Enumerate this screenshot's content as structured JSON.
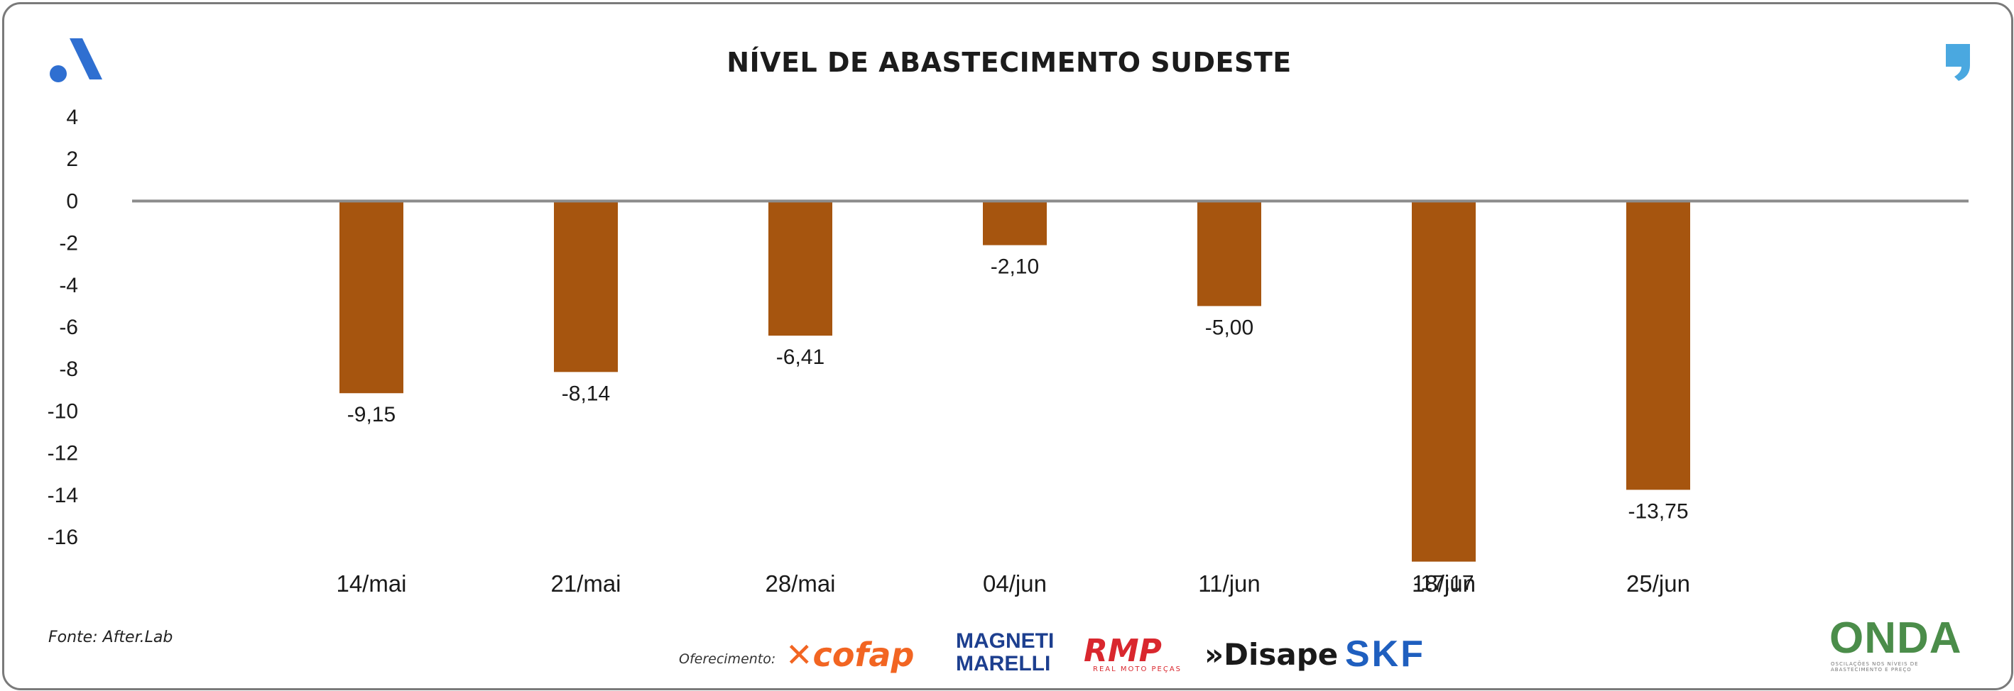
{
  "header": {
    "title": "NÍVEL DE ABASTECIMENTO SUDESTE",
    "left_logo_icon": "brand-a-logo",
    "right_logo_icon": "quote-mark-logo"
  },
  "chart_data": {
    "type": "bar",
    "title": "NÍVEL DE ABASTECIMENTO SUDESTE",
    "categories": [
      "14/mai",
      "21/mai",
      "28/mai",
      "04/jun",
      "11/jun",
      "18/jun",
      "25/jun"
    ],
    "values": [
      -9.15,
      -8.14,
      -6.41,
      -2.1,
      -5.0,
      -17.17,
      -13.75
    ],
    "value_labels": [
      "-9,15",
      "-8,14",
      "-6,41",
      "-2,10",
      "-5,00",
      "-17,17",
      "-13,75"
    ],
    "y_ticks": [
      4,
      2,
      0,
      -2,
      -4,
      -6,
      -8,
      -10,
      -12,
      -14,
      -16
    ],
    "y_tick_labels": [
      "4",
      "2",
      "0",
      "-2",
      "-4",
      "-6",
      "-8",
      "-10",
      "-12",
      "-14",
      "-16"
    ],
    "ylim": [
      -16,
      4
    ],
    "xlabel": "",
    "ylabel": "",
    "grid": false,
    "bar_color": "#A6550F",
    "zero_line_color": "#8c8c8c"
  },
  "footer": {
    "source": "Fonte: After.Lab",
    "sponsor_label": "Oferecimento:",
    "sponsors": {
      "cofap": "cofap",
      "magneti_1": "MAGNETI",
      "magneti_2": "MARELLI",
      "rmp": "RMP",
      "rmp_sub": "REAL MOTO PEÇAS",
      "disape": "»Disape",
      "skf": "SKF"
    },
    "onda": "ONDA",
    "onda_sub": "OSCILAÇÕES NOS NÍVEIS DE ABASTECIMENTO E PREÇO"
  },
  "colors": {
    "accent_blue": "#2f6fd1",
    "light_blue": "#4aa8e0"
  }
}
